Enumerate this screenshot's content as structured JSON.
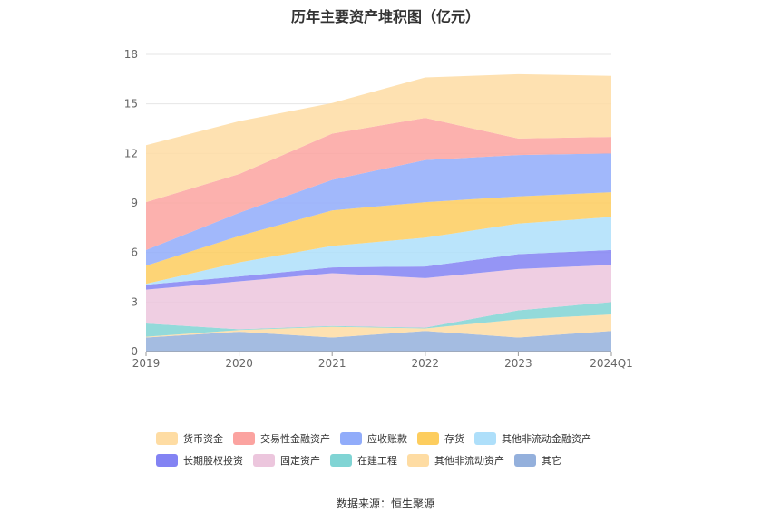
{
  "chart_data": {
    "type": "area",
    "title": "历年主要资产堆积图（亿元）",
    "categories": [
      "2019",
      "2020",
      "2021",
      "2022",
      "2023",
      "2024Q1"
    ],
    "ylim": [
      0,
      18
    ],
    "yticks": [
      0,
      3,
      6,
      9,
      12,
      15,
      18
    ],
    "grid": true,
    "legend_position": "bottom",
    "series": [
      {
        "name": "其它",
        "color": "#94b0dc",
        "values": [
          0.85,
          1.2,
          0.85,
          1.25,
          0.85,
          1.25
        ]
      },
      {
        "name": "其他非流动资产",
        "color": "#fedca3",
        "values": [
          0.05,
          0.1,
          0.65,
          0.15,
          1.1,
          1.0
        ]
      },
      {
        "name": "在建工程",
        "color": "#80d4d4",
        "values": [
          0.8,
          0.05,
          0.05,
          0.05,
          0.55,
          0.75
        ]
      },
      {
        "name": "固定资产",
        "color": "#ecc6dd",
        "values": [
          2.05,
          2.9,
          3.2,
          3.0,
          2.5,
          2.25
        ]
      },
      {
        "name": "长期股权投资",
        "color": "#8383f3",
        "values": [
          0.3,
          0.3,
          0.35,
          0.7,
          0.9,
          0.9
        ]
      },
      {
        "name": "其他非流动金融资产",
        "color": "#aedffa",
        "values": [
          0.05,
          0.85,
          1.3,
          1.75,
          1.85,
          2.0
        ]
      },
      {
        "name": "存货",
        "color": "#fdcd5e",
        "values": [
          1.1,
          1.6,
          2.15,
          2.15,
          1.65,
          1.5
        ]
      },
      {
        "name": "应收账款",
        "color": "#91acfa",
        "values": [
          0.95,
          1.4,
          1.85,
          2.55,
          2.5,
          2.35
        ]
      },
      {
        "name": "交易性金融资产",
        "color": "#fba3a0",
        "values": [
          2.9,
          2.35,
          2.8,
          2.55,
          1.0,
          1.0
        ]
      },
      {
        "name": "货币资金",
        "color": "#fedca3",
        "values": [
          3.45,
          3.2,
          1.85,
          2.45,
          3.9,
          3.7
        ]
      }
    ]
  },
  "legend": {
    "row1": [
      {
        "name": "货币资金",
        "color": "#fedca3"
      },
      {
        "name": "交易性金融资产",
        "color": "#fba3a0"
      },
      {
        "name": "应收账款",
        "color": "#91acfa"
      },
      {
        "name": "存货",
        "color": "#fdcd5e"
      },
      {
        "name": "其他非流动金融资产",
        "color": "#aedffa"
      }
    ],
    "row2": [
      {
        "name": "长期股权投资",
        "color": "#8383f3"
      },
      {
        "name": "固定资产",
        "color": "#ecc6dd"
      },
      {
        "name": "在建工程",
        "color": "#80d4d4"
      },
      {
        "name": "其他非流动资产",
        "color": "#fedca3"
      },
      {
        "name": "其它",
        "color": "#94b0dc"
      }
    ]
  },
  "source": "数据来源：恒生聚源"
}
